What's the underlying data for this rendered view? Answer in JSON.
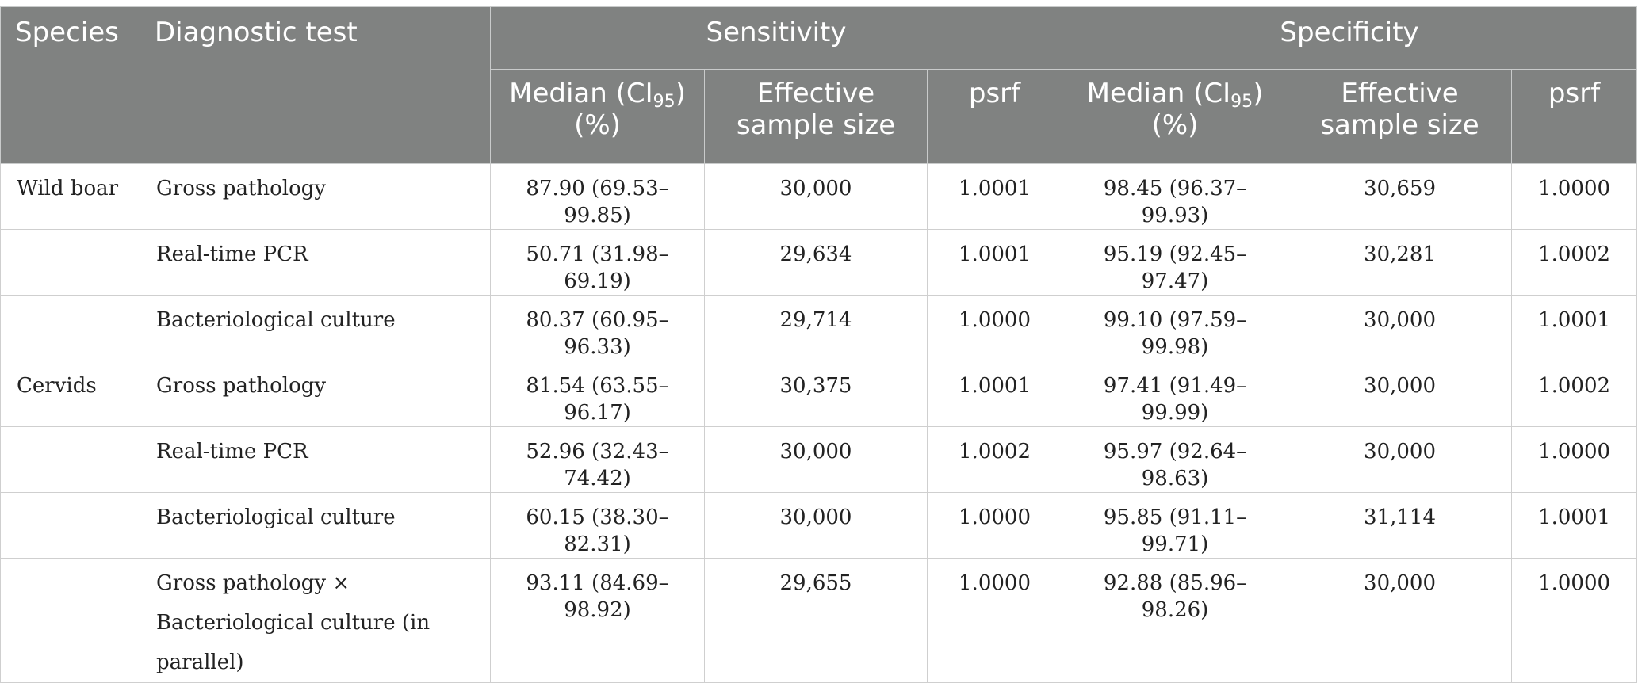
{
  "header": {
    "species": "Species",
    "test": "Diagnostic test",
    "sensitivity": "Sensitivity",
    "specificity": "Specificity",
    "median_prefix": "Median (CI",
    "median_sub": "95",
    "median_suffix": ")",
    "median_unit": "(%)",
    "ess_line1": "Effective",
    "ess_line2": "sample size",
    "psrf": "psrf"
  },
  "rows": [
    {
      "species": "Wild boar",
      "test": "Gross pathology",
      "sens_median": "87.90 (69.53–99.85)",
      "sens_ess": "30,000",
      "sens_psrf": "1.0001",
      "spec_median": "98.45 (96.37–99.93)",
      "spec_ess": "30,659",
      "spec_psrf": "1.0000"
    },
    {
      "species": "",
      "test": "Real-time PCR",
      "sens_median": "50.71 (31.98–69.19)",
      "sens_ess": "29,634",
      "sens_psrf": "1.0001",
      "spec_median": "95.19 (92.45–97.47)",
      "spec_ess": "30,281",
      "spec_psrf": "1.0002"
    },
    {
      "species": "",
      "test": "Bacteriological culture",
      "sens_median": "80.37 (60.95–96.33)",
      "sens_ess": "29,714",
      "sens_psrf": "1.0000",
      "spec_median": "99.10 (97.59–99.98)",
      "spec_ess": "30,000",
      "spec_psrf": "1.0001"
    },
    {
      "species": "Cervids",
      "test": "Gross pathology",
      "sens_median": "81.54 (63.55–96.17)",
      "sens_ess": "30,375",
      "sens_psrf": "1.0001",
      "spec_median": "97.41 (91.49–99.99)",
      "spec_ess": "30,000",
      "spec_psrf": "1.0002"
    },
    {
      "species": "",
      "test": "Real-time PCR",
      "sens_median": "52.96 (32.43–74.42)",
      "sens_ess": "30,000",
      "sens_psrf": "1.0002",
      "spec_median": "95.97 (92.64–98.63)",
      "spec_ess": "30,000",
      "spec_psrf": "1.0000"
    },
    {
      "species": "",
      "test": "Bacteriological culture",
      "sens_median": "60.15 (38.30–82.31)",
      "sens_ess": "30,000",
      "sens_psrf": "1.0000",
      "spec_median": "95.85 (91.11–99.71)",
      "spec_ess": "31,114",
      "spec_psrf": "1.0001"
    },
    {
      "species": "",
      "test": "Gross pathology × Bacteriological culture (in parallel)",
      "sens_median": "93.11 (84.69–98.92)",
      "sens_ess": "29,655",
      "sens_psrf": "1.0000",
      "spec_median": "92.88 (85.96–98.26)",
      "spec_ess": "30,000",
      "spec_psrf": "1.0000"
    }
  ]
}
